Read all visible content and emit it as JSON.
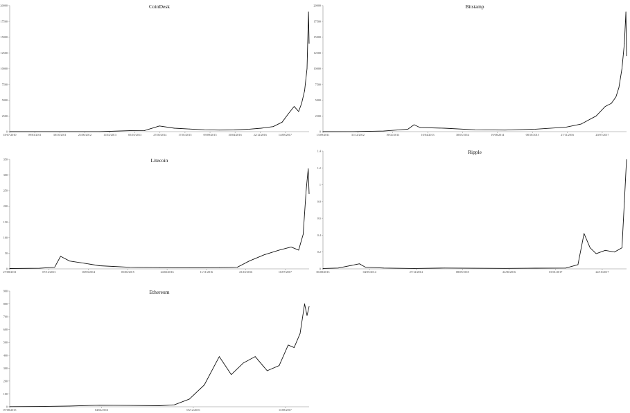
{
  "chart_data": [
    {
      "type": "line",
      "title": "CoinDesk",
      "xlabel": "",
      "ylabel": "",
      "ylim": [
        0,
        20000
      ],
      "y_ticks": [
        "0",
        "2500",
        "5000",
        "7500",
        "10000",
        "12500",
        "15000",
        "17500",
        "20000"
      ],
      "x_ticks": [
        "18/07/2010",
        "09/03/2011",
        "30/10/2011",
        "21/06/2012",
        "11/02/2013",
        "05/10/2013",
        "27/05/2014",
        "17/01/2015",
        "09/09/2015",
        "30/04/2016",
        "22/12/2016",
        "14/08/2017"
      ],
      "x": [
        0,
        0.1,
        0.2,
        0.3,
        0.4,
        0.45,
        0.5,
        0.55,
        0.6,
        0.65,
        0.7,
        0.75,
        0.8,
        0.84,
        0.88,
        0.91,
        0.93,
        0.95,
        0.965,
        0.975,
        0.985,
        0.993,
        0.998,
        1.0
      ],
      "values": [
        5,
        10,
        8,
        12,
        150,
        180,
        900,
        550,
        420,
        300,
        250,
        280,
        400,
        550,
        800,
        1500,
        2800,
        4000,
        3200,
        4500,
        6500,
        10000,
        19000,
        14000
      ]
    },
    {
      "type": "line",
      "title": "Bitstamp",
      "xlabel": "",
      "ylabel": "",
      "ylim": [
        0,
        20000
      ],
      "y_ticks": [
        "0",
        "2500",
        "5000",
        "7500",
        "10000",
        "12500",
        "15000",
        "17500",
        "20000"
      ],
      "x_ticks": [
        "13/09/2011",
        "31/12/2012",
        "19/02/2013",
        "10/04/2013",
        "30/05/2014",
        "19/08/2014",
        "08/10/2015",
        "27/11/2016",
        "20/07/2017"
      ],
      "x": [
        0,
        0.1,
        0.2,
        0.28,
        0.3,
        0.32,
        0.4,
        0.5,
        0.6,
        0.7,
        0.8,
        0.85,
        0.9,
        0.93,
        0.95,
        0.965,
        0.975,
        0.985,
        0.993,
        0.998,
        1.0
      ],
      "values": [
        5,
        10,
        100,
        400,
        1100,
        650,
        550,
        300,
        250,
        400,
        700,
        1200,
        2500,
        4000,
        4500,
        5500,
        7000,
        10000,
        14000,
        19000,
        12000
      ]
    },
    {
      "type": "line",
      "title": "Litecoin",
      "xlabel": "",
      "ylabel": "",
      "ylim": [
        0,
        350
      ],
      "y_ticks": [
        "0",
        "50",
        "100",
        "150",
        "200",
        "250",
        "300",
        "350"
      ],
      "x_ticks": [
        "27/08/2011",
        "07/12/2013",
        "18/09/2014",
        "05/06/2015",
        "24/02/2016",
        "11/11/2016",
        "23/10/2016",
        "10/07/2017"
      ],
      "x": [
        0,
        0.1,
        0.15,
        0.17,
        0.2,
        0.25,
        0.3,
        0.4,
        0.5,
        0.6,
        0.7,
        0.76,
        0.8,
        0.85,
        0.9,
        0.94,
        0.965,
        0.98,
        0.99,
        0.997,
        1.0
      ],
      "values": [
        1,
        2,
        5,
        40,
        25,
        18,
        10,
        5,
        4,
        3,
        4,
        5,
        25,
        45,
        60,
        70,
        60,
        110,
        250,
        320,
        240
      ]
    },
    {
      "type": "line",
      "title": "Ripple",
      "xlabel": "",
      "ylabel": "",
      "ylim": [
        0,
        1.4
      ],
      "y_ticks": [
        "0",
        "0.2",
        "0.4",
        "0.6",
        "0.8",
        "1",
        "1.2",
        "1.4"
      ],
      "x_ticks": [
        "06/08/2013",
        "04/05/2014",
        "27/12/2014",
        "08/09/2015",
        "24/06/2016",
        "03/01/2017",
        "22/10/2017"
      ],
      "x": [
        0,
        0.05,
        0.12,
        0.14,
        0.2,
        0.3,
        0.4,
        0.5,
        0.6,
        0.7,
        0.8,
        0.84,
        0.86,
        0.88,
        0.9,
        0.93,
        0.96,
        0.985,
        0.993,
        1.0
      ],
      "values": [
        0.005,
        0.01,
        0.06,
        0.02,
        0.01,
        0.005,
        0.01,
        0.007,
        0.006,
        0.008,
        0.01,
        0.05,
        0.42,
        0.25,
        0.18,
        0.22,
        0.2,
        0.25,
        0.8,
        1.3
      ]
    },
    {
      "type": "line",
      "title": "Ethereum",
      "xlabel": "",
      "ylabel": "",
      "ylim": [
        0,
        900
      ],
      "y_ticks": [
        "0",
        "100",
        "200",
        "300",
        "400",
        "500",
        "600",
        "700",
        "800",
        "900"
      ],
      "x_ticks": [
        "07/08/2015",
        "04/04/2016",
        "05/12/2016",
        "11/08/2017"
      ],
      "x": [
        0,
        0.1,
        0.2,
        0.3,
        0.4,
        0.5,
        0.55,
        0.6,
        0.65,
        0.7,
        0.74,
        0.78,
        0.82,
        0.86,
        0.9,
        0.93,
        0.95,
        0.97,
        0.985,
        0.993,
        1.0
      ],
      "values": [
        1,
        2,
        6,
        12,
        10,
        8,
        15,
        60,
        170,
        390,
        250,
        340,
        390,
        280,
        320,
        480,
        460,
        570,
        800,
        710,
        780
      ]
    }
  ]
}
